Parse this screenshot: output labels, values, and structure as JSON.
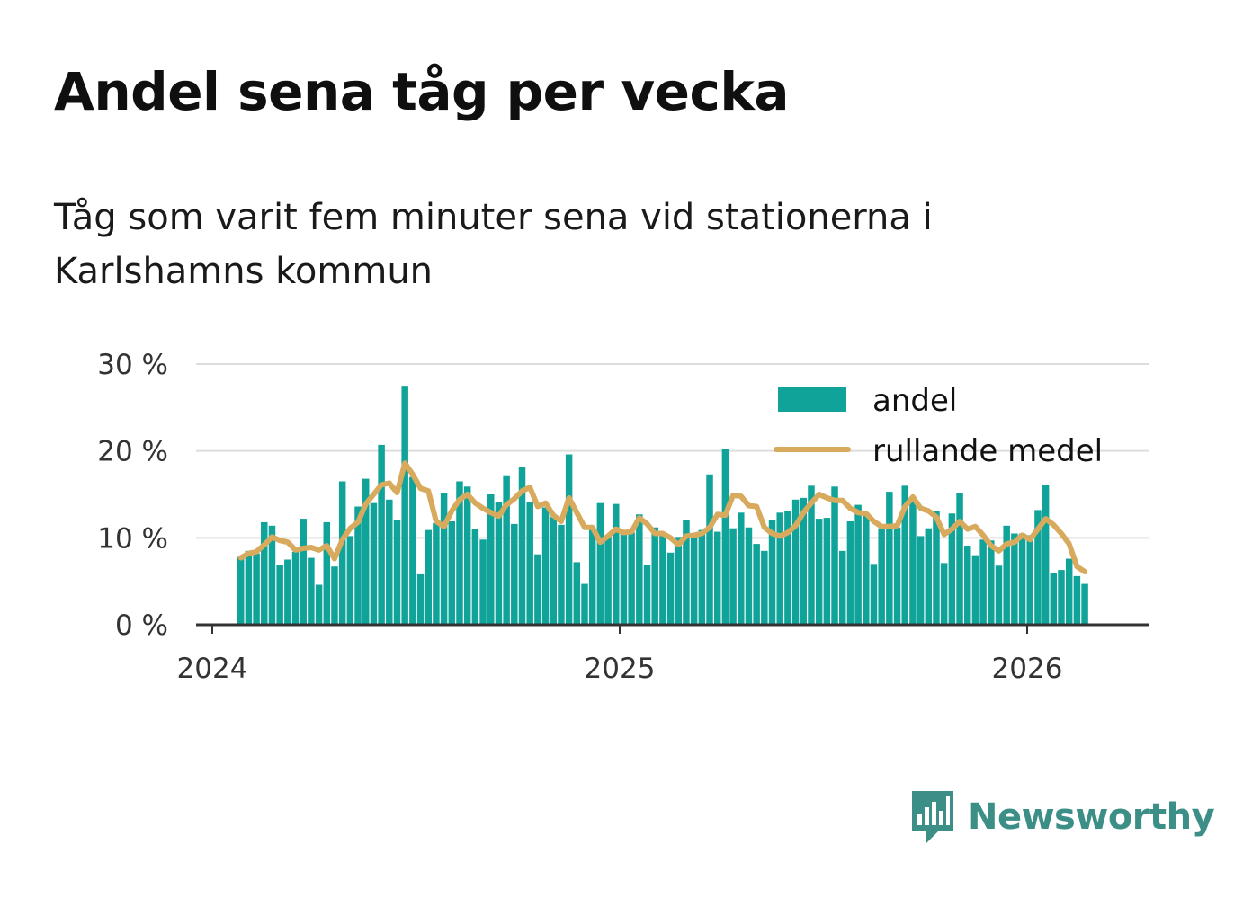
{
  "chart_data": {
    "type": "bar",
    "title": "Andel sena tåg per vecka",
    "subtitle": "Tåg som varit fem minuter sena vid stationerna i Karlshamns kommun",
    "xlabel": "",
    "ylabel": "",
    "ylim": [
      0,
      30
    ],
    "y_ticks": [
      {
        "value": 0,
        "label": "0 %"
      },
      {
        "value": 10,
        "label": "10 %"
      },
      {
        "value": 20,
        "label": "20 %"
      },
      {
        "value": 30,
        "label": "30 %"
      }
    ],
    "x_ticks": [
      {
        "value": 2024,
        "label": "2024"
      },
      {
        "value": 2025,
        "label": "2025"
      },
      {
        "value": 2026,
        "label": "2026"
      }
    ],
    "x_domain": [
      2024.0,
      2026.3
    ],
    "first_week": 2024.07,
    "week_step": 0.01918,
    "legend_position": "top-right",
    "colors": {
      "bar": "#0fa399",
      "line": "#d8aa5d",
      "grid": "#dddddd",
      "axis": "#333333"
    },
    "series": [
      {
        "name": "andel",
        "type": "bar",
        "values": [
          7.8,
          8.5,
          8.2,
          11.8,
          11.4,
          6.9,
          7.5,
          8.4,
          12.2,
          7.7,
          4.6,
          11.8,
          6.7,
          16.5,
          10.2,
          13.6,
          16.8,
          14.0,
          20.7,
          14.4,
          12.0,
          27.5,
          17.0,
          5.8,
          10.9,
          11.7,
          15.2,
          11.9,
          16.5,
          15.9,
          11.0,
          9.8,
          15.0,
          14.1,
          17.2,
          11.6,
          18.1,
          14.1,
          8.1,
          13.5,
          12.4,
          11.5,
          19.6,
          7.2,
          4.7,
          11.2,
          14.0,
          10.2,
          13.9,
          10.9,
          10.6,
          12.7,
          6.9,
          11.2,
          10.4,
          8.3,
          10.1,
          12.0,
          10.3,
          10.9,
          17.3,
          10.7,
          20.2,
          11.1,
          12.9,
          11.2,
          9.3,
          8.5,
          12.0,
          12.9,
          13.1,
          14.4,
          14.6,
          16.0,
          12.2,
          12.3,
          15.9,
          8.5,
          11.9,
          13.8,
          12.9,
          7.0,
          11.1,
          15.3,
          11.2,
          16.0,
          14.2,
          10.2,
          11.1,
          13.1,
          7.1,
          12.8,
          15.2,
          9.1,
          8.0,
          9.8,
          9.7,
          6.8,
          11.4,
          10.5,
          10.5,
          10.3,
          13.2,
          16.1,
          5.9,
          6.3,
          7.6,
          5.6,
          4.7
        ]
      },
      {
        "name": "rullande medel",
        "type": "line",
        "values": [
          7.7,
          8.2,
          8.4,
          9.2,
          10.1,
          9.7,
          9.5,
          8.6,
          8.8,
          8.9,
          8.6,
          9.1,
          7.6,
          9.8,
          11.1,
          11.8,
          13.9,
          15.0,
          16.1,
          16.3,
          15.2,
          18.6,
          17.3,
          15.7,
          15.4,
          11.9,
          11.3,
          13.1,
          14.4,
          15.0,
          14.0,
          13.4,
          12.9,
          12.5,
          13.8,
          14.5,
          15.4,
          15.8,
          13.6,
          14.0,
          12.6,
          11.9,
          14.6,
          12.9,
          11.2,
          11.2,
          9.5,
          10.2,
          11.0,
          10.6,
          10.7,
          12.3,
          11.6,
          10.5,
          10.5,
          10.0,
          9.2,
          10.2,
          10.3,
          10.5,
          11.2,
          12.7,
          12.6,
          14.9,
          14.8,
          13.7,
          13.6,
          11.2,
          10.5,
          10.2,
          10.6,
          11.4,
          12.9,
          14.0,
          15.0,
          14.6,
          14.3,
          14.3,
          13.4,
          12.9,
          12.8,
          11.9,
          11.3,
          11.3,
          11.4,
          13.6,
          14.7,
          13.4,
          13.1,
          12.4,
          10.4,
          11.0,
          11.9,
          11.0,
          11.3,
          10.3,
          9.1,
          8.5,
          9.3,
          9.5,
          10.3,
          9.8,
          11.0,
          12.2,
          11.5,
          10.5,
          9.3,
          6.7,
          6.1
        ]
      }
    ]
  },
  "brand": {
    "name": "Newsworthy"
  }
}
